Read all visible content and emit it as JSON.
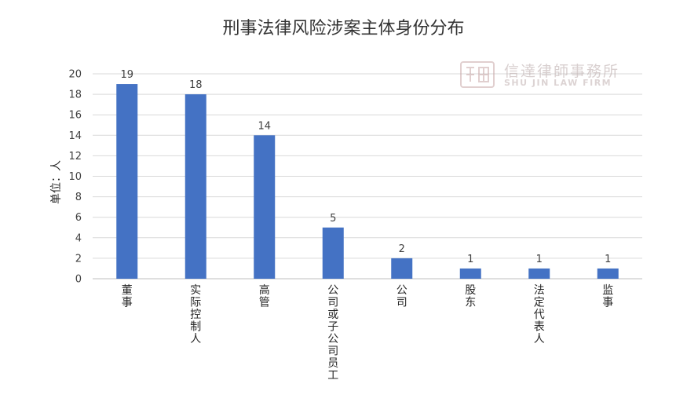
{
  "chart_data": {
    "type": "bar",
    "title": "刑事法律风险涉案主体身份分布",
    "ylabel": "单位：人",
    "xlabel": "",
    "categories": [
      "董事",
      "实际控制人",
      "高管",
      "公司或子公司员工",
      "公司",
      "股东",
      "法定代表人",
      "监事"
    ],
    "values": [
      19,
      18,
      14,
      5,
      2,
      1,
      1,
      1
    ],
    "ylim": [
      0,
      20
    ],
    "yticks": [
      0,
      2,
      4,
      6,
      8,
      10,
      12,
      14,
      16,
      18,
      20
    ],
    "grid": true,
    "legend": "none",
    "bar_color": "#4472C4",
    "gridline_color": "#d9d9d9"
  },
  "watermark": {
    "name": "信達律師事務所",
    "english": "SHU JIN LAW FIRM",
    "seal_color": "#c9a9a9"
  }
}
